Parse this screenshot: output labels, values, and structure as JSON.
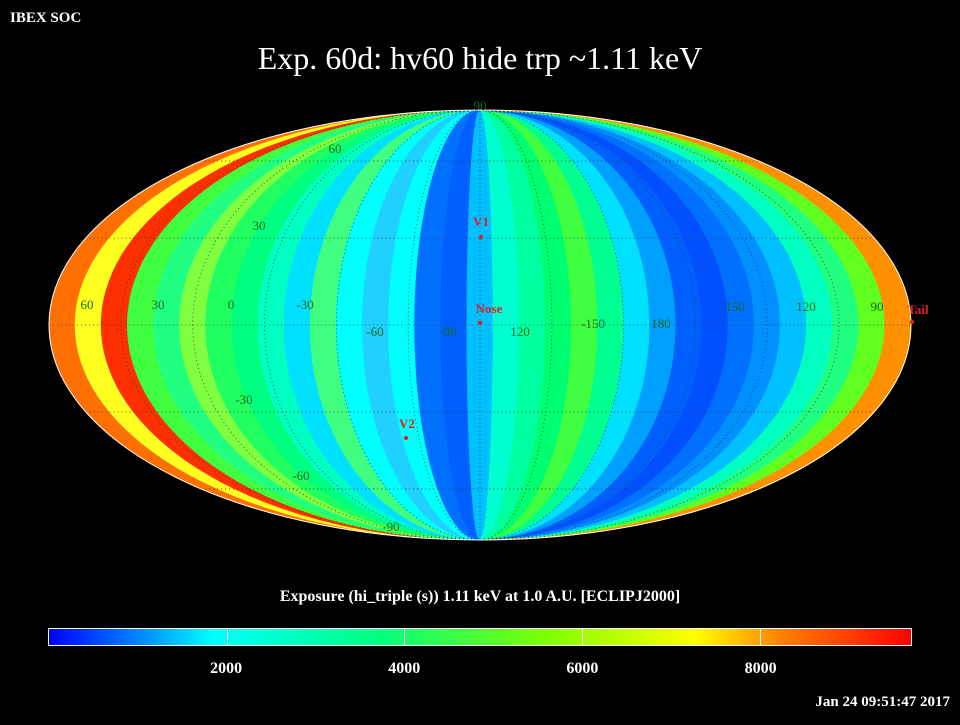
{
  "header": {
    "org_label": "IBEX SOC",
    "title": "Exp.   60d: hv60 hide trp ~1.11 keV"
  },
  "map": {
    "lat_labels": [
      {
        "text": "90",
        "lat": 90
      },
      {
        "text": "60",
        "lat": 60
      },
      {
        "text": "30",
        "lat": 30
      },
      {
        "text": "-30",
        "lat": -30
      },
      {
        "text": "-60",
        "lat": -60
      },
      {
        "text": "-90",
        "lat": -90
      }
    ],
    "lon_labels": [
      {
        "text": "60",
        "lon": 60
      },
      {
        "text": "30",
        "lon": 30
      },
      {
        "text": "0",
        "lon": 0
      },
      {
        "text": "-30",
        "lon": -30
      },
      {
        "text": "-60",
        "lon": -60
      },
      {
        "text": "-90",
        "lon": -90
      },
      {
        "text": "120",
        "lon": 120
      },
      {
        "text": "-150",
        "lon": -150
      },
      {
        "text": "180",
        "lon": 180
      },
      {
        "text": "150",
        "lon": 150
      },
      {
        "text": "120",
        "lon": 120
      },
      {
        "text": "90",
        "lon": 90
      }
    ],
    "markers": [
      {
        "text": "V1",
        "lon": 255,
        "lat": 35
      },
      {
        "text": "Nose",
        "lon": 255,
        "lat": 5
      },
      {
        "text": "V2",
        "lon": 289,
        "lat": -32
      },
      {
        "text": "Tail",
        "lon": 75,
        "lat": 5
      }
    ],
    "marker_color": "#e02020"
  },
  "colorbar": {
    "caption": "Exposure (hi_triple (s))  1.11 keV at 1.0 A.U. [ECLIPJ2000]",
    "range": [
      0,
      9700
    ],
    "ticks": [
      "2000",
      "4000",
      "6000",
      "8000"
    ],
    "colors": [
      "#0000ff",
      "#0080ff",
      "#00ffff",
      "#00ff80",
      "#80ff00",
      "#ffff00",
      "#ff8000",
      "#ff0000"
    ]
  },
  "footer": {
    "timestamp": "Jan 24 09:51:47 2017"
  }
}
